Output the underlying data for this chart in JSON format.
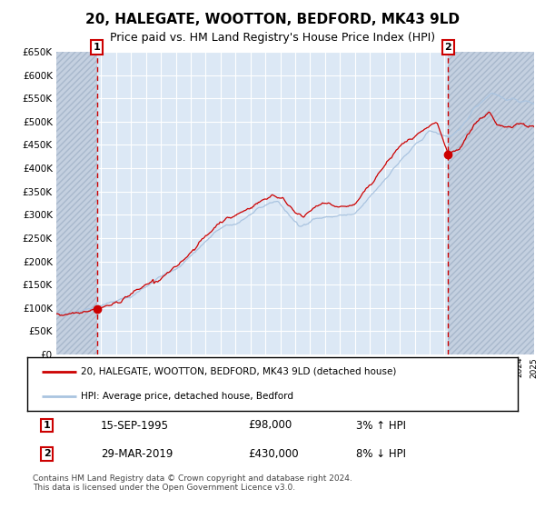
{
  "title": "20, HALEGATE, WOOTTON, BEDFORD, MK43 9LD",
  "subtitle": "Price paid vs. HM Land Registry's House Price Index (HPI)",
  "ytick_values": [
    0,
    50000,
    100000,
    150000,
    200000,
    250000,
    300000,
    350000,
    400000,
    450000,
    500000,
    550000,
    600000,
    650000
  ],
  "year_start": 1993,
  "year_end": 2025,
  "sale1_year": 1995.71,
  "sale1_value": 98000,
  "sale2_year": 2019.24,
  "sale2_value": 430000,
  "legend_line1": "20, HALEGATE, WOOTTON, BEDFORD, MK43 9LD (detached house)",
  "legend_line2": "HPI: Average price, detached house, Bedford",
  "annotation1_label": "1",
  "annotation1_date": "15-SEP-1995",
  "annotation1_price": "£98,000",
  "annotation1_hpi": "3% ↑ HPI",
  "annotation2_label": "2",
  "annotation2_date": "29-MAR-2019",
  "annotation2_price": "£430,000",
  "annotation2_hpi": "8% ↓ HPI",
  "footer": "Contains HM Land Registry data © Crown copyright and database right 2024.\nThis data is licensed under the Open Government Licence v3.0.",
  "hpi_color": "#aac4e0",
  "price_color": "#cc0000",
  "vline_color": "#cc0000",
  "plot_bg": "#dce8f5",
  "grid_color": "#ffffff",
  "hatch_color": "#c4d0e0"
}
